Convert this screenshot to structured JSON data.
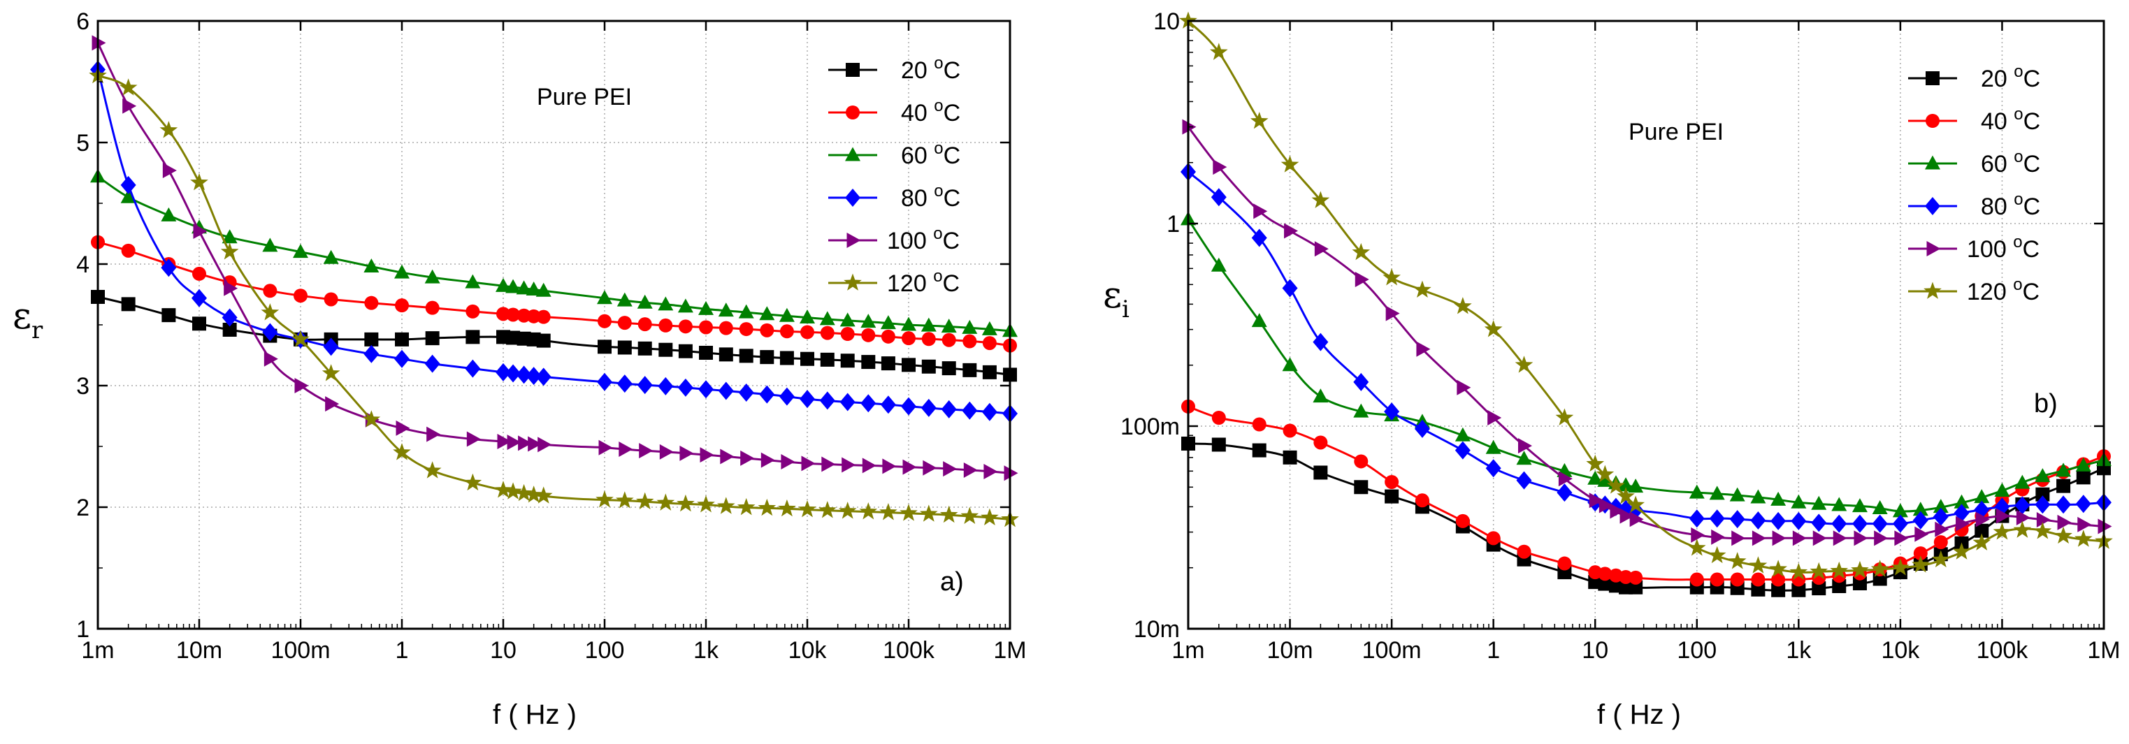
{
  "chart_data": [
    {
      "type": "line",
      "panel_label": "a)",
      "annotation": "Pure PEI",
      "xlabel": "f ( Hz )",
      "ylabel": "ε",
      "ylabel_sub": "r",
      "xscale": "log",
      "yscale": "linear",
      "xlim": [
        0.001,
        1000000
      ],
      "ylim": [
        1,
        6
      ],
      "xticks": [
        {
          "value": 0.001,
          "label": "1m"
        },
        {
          "value": 0.01,
          "label": "10m"
        },
        {
          "value": 0.1,
          "label": "100m"
        },
        {
          "value": 1,
          "label": "1"
        },
        {
          "value": 10,
          "label": "10"
        },
        {
          "value": 100,
          "label": "100"
        },
        {
          "value": 1000,
          "label": "1k"
        },
        {
          "value": 10000,
          "label": "10k"
        },
        {
          "value": 100000,
          "label": "100k"
        },
        {
          "value": 1000000,
          "label": "1M"
        }
      ],
      "yticks": [
        {
          "value": 1,
          "label": "1"
        },
        {
          "value": 2,
          "label": "2"
        },
        {
          "value": 3,
          "label": "3"
        },
        {
          "value": 4,
          "label": "4"
        },
        {
          "value": 5,
          "label": "5"
        },
        {
          "value": 6,
          "label": "6"
        }
      ],
      "grid": true,
      "legend_position": "top-right",
      "series": [
        {
          "name": "20 °C",
          "temp": "20",
          "color": "#000000",
          "marker": "square",
          "x": [
            0.001,
            0.002,
            0.005,
            0.01,
            0.02,
            0.05,
            0.1,
            0.2,
            0.5,
            1,
            2,
            5,
            10,
            20,
            50,
            100,
            200,
            500,
            1000,
            2000,
            5000,
            10000,
            20000,
            50000,
            100000,
            200000,
            500000,
            1000000
          ],
          "y": [
            3.73,
            3.67,
            3.58,
            3.51,
            3.46,
            3.41,
            3.38,
            3.38,
            3.38,
            3.38,
            3.39,
            3.4,
            3.4,
            3.38,
            3.34,
            3.32,
            3.31,
            3.29,
            3.27,
            3.25,
            3.23,
            3.22,
            3.21,
            3.19,
            3.17,
            3.15,
            3.12,
            3.09
          ]
        },
        {
          "name": "40 °C",
          "temp": "40",
          "color": "#ff0000",
          "marker": "circle",
          "x": [
            0.001,
            0.002,
            0.005,
            0.01,
            0.02,
            0.05,
            0.1,
            0.2,
            0.5,
            1,
            2,
            5,
            10,
            20,
            50,
            100,
            200,
            500,
            1000,
            2000,
            5000,
            10000,
            20000,
            50000,
            100000,
            200000,
            500000,
            1000000
          ],
          "y": [
            4.18,
            4.11,
            4.0,
            3.92,
            3.85,
            3.78,
            3.74,
            3.71,
            3.68,
            3.66,
            3.64,
            3.61,
            3.59,
            3.57,
            3.55,
            3.53,
            3.51,
            3.49,
            3.48,
            3.47,
            3.45,
            3.44,
            3.43,
            3.41,
            3.39,
            3.38,
            3.36,
            3.33
          ]
        },
        {
          "name": "60 °C",
          "temp": "60",
          "color": "#008000",
          "marker": "triangle",
          "x": [
            0.001,
            0.002,
            0.005,
            0.01,
            0.02,
            0.05,
            0.1,
            0.2,
            0.5,
            1,
            2,
            5,
            10,
            20,
            50,
            100,
            200,
            500,
            1000,
            2000,
            5000,
            10000,
            20000,
            50000,
            100000,
            200000,
            500000,
            1000000
          ],
          "y": [
            4.72,
            4.55,
            4.4,
            4.3,
            4.22,
            4.15,
            4.1,
            4.05,
            3.98,
            3.93,
            3.89,
            3.85,
            3.82,
            3.79,
            3.75,
            3.72,
            3.69,
            3.66,
            3.63,
            3.61,
            3.58,
            3.56,
            3.54,
            3.52,
            3.5,
            3.49,
            3.47,
            3.45
          ]
        },
        {
          "name": "80 °C",
          "temp": "80",
          "color": "#0000ff",
          "marker": "diamond",
          "x": [
            0.001,
            0.002,
            0.005,
            0.01,
            0.02,
            0.05,
            0.1,
            0.2,
            0.5,
            1,
            2,
            5,
            10,
            20,
            50,
            100,
            200,
            500,
            1000,
            2000,
            5000,
            10000,
            20000,
            50000,
            100000,
            200000,
            500000,
            1000000
          ],
          "y": [
            5.6,
            4.65,
            3.97,
            3.72,
            3.56,
            3.44,
            3.38,
            3.32,
            3.26,
            3.22,
            3.18,
            3.14,
            3.11,
            3.08,
            3.05,
            3.03,
            3.01,
            2.99,
            2.97,
            2.95,
            2.92,
            2.89,
            2.87,
            2.85,
            2.83,
            2.81,
            2.79,
            2.77
          ]
        },
        {
          "name": "100 °C",
          "temp": "100",
          "color": "#800080",
          "marker": "triangle-right",
          "x": [
            0.001,
            0.002,
            0.005,
            0.01,
            0.02,
            0.05,
            0.1,
            0.2,
            0.5,
            1,
            2,
            5,
            10,
            20,
            50,
            100,
            200,
            500,
            1000,
            2000,
            5000,
            10000,
            20000,
            50000,
            100000,
            200000,
            500000,
            1000000
          ],
          "y": [
            5.82,
            5.3,
            4.77,
            4.27,
            3.8,
            3.22,
            3.0,
            2.85,
            2.72,
            2.65,
            2.6,
            2.56,
            2.54,
            2.52,
            2.5,
            2.49,
            2.47,
            2.45,
            2.43,
            2.41,
            2.38,
            2.36,
            2.35,
            2.34,
            2.33,
            2.32,
            2.3,
            2.28
          ]
        },
        {
          "name": "120 °C",
          "temp": "120",
          "color": "#808000",
          "marker": "star",
          "x": [
            0.001,
            0.002,
            0.005,
            0.01,
            0.02,
            0.05,
            0.1,
            0.2,
            0.5,
            1,
            2,
            5,
            10,
            20,
            50,
            100,
            200,
            500,
            1000,
            2000,
            5000,
            10000,
            20000,
            50000,
            100000,
            200000,
            500000,
            1000000
          ],
          "y": [
            5.55,
            5.45,
            5.1,
            4.67,
            4.1,
            3.6,
            3.38,
            3.1,
            2.72,
            2.45,
            2.3,
            2.2,
            2.14,
            2.1,
            2.07,
            2.06,
            2.05,
            2.03,
            2.02,
            2.0,
            1.99,
            1.98,
            1.97,
            1.96,
            1.95,
            1.94,
            1.92,
            1.9
          ]
        }
      ]
    },
    {
      "type": "line",
      "panel_label": "b)",
      "annotation": "Pure PEI",
      "xlabel": "f ( Hz )",
      "ylabel": "ε",
      "ylabel_sub": "i",
      "xscale": "log",
      "yscale": "log",
      "xlim": [
        0.001,
        1000000
      ],
      "ylim": [
        0.01,
        10
      ],
      "xticks": [
        {
          "value": 0.001,
          "label": "1m"
        },
        {
          "value": 0.01,
          "label": "10m"
        },
        {
          "value": 0.1,
          "label": "100m"
        },
        {
          "value": 1,
          "label": "1"
        },
        {
          "value": 10,
          "label": "10"
        },
        {
          "value": 100,
          "label": "100"
        },
        {
          "value": 1000,
          "label": "1k"
        },
        {
          "value": 10000,
          "label": "10k"
        },
        {
          "value": 100000,
          "label": "100k"
        },
        {
          "value": 1000000,
          "label": "1M"
        }
      ],
      "yticks": [
        {
          "value": 0.01,
          "label": "10m"
        },
        {
          "value": 0.1,
          "label": "100m"
        },
        {
          "value": 1,
          "label": "1"
        },
        {
          "value": 10,
          "label": "10"
        }
      ],
      "grid": true,
      "legend_position": "top-right",
      "series": [
        {
          "name": "20 °C",
          "temp": "20",
          "color": "#000000",
          "marker": "square",
          "x": [
            0.001,
            0.002,
            0.005,
            0.01,
            0.02,
            0.05,
            0.1,
            0.2,
            0.5,
            1,
            2,
            5,
            10,
            20,
            50,
            100,
            200,
            500,
            1000,
            2000,
            5000,
            10000,
            20000,
            50000,
            100000,
            200000,
            500000,
            1000000
          ],
          "y": [
            0.082,
            0.081,
            0.076,
            0.07,
            0.059,
            0.05,
            0.045,
            0.04,
            0.032,
            0.026,
            0.022,
            0.019,
            0.017,
            0.016,
            0.016,
            0.016,
            0.016,
            0.0155,
            0.0155,
            0.016,
            0.017,
            0.019,
            0.022,
            0.028,
            0.036,
            0.044,
            0.053,
            0.062
          ]
        },
        {
          "name": "40 °C",
          "temp": "40",
          "color": "#ff0000",
          "marker": "circle",
          "x": [
            0.001,
            0.002,
            0.005,
            0.01,
            0.02,
            0.05,
            0.1,
            0.2,
            0.5,
            1,
            2,
            5,
            10,
            20,
            50,
            100,
            200,
            500,
            1000,
            2000,
            5000,
            10000,
            20000,
            50000,
            100000,
            200000,
            500000,
            1000000
          ],
          "y": [
            0.125,
            0.11,
            0.102,
            0.095,
            0.083,
            0.067,
            0.053,
            0.043,
            0.034,
            0.028,
            0.024,
            0.021,
            0.019,
            0.018,
            0.0175,
            0.0175,
            0.0175,
            0.0175,
            0.0175,
            0.018,
            0.019,
            0.021,
            0.025,
            0.033,
            0.043,
            0.052,
            0.062,
            0.071
          ]
        },
        {
          "name": "60 °C",
          "temp": "60",
          "color": "#008000",
          "marker": "triangle",
          "x": [
            0.001,
            0.002,
            0.005,
            0.01,
            0.02,
            0.05,
            0.1,
            0.2,
            0.5,
            1,
            2,
            5,
            10,
            20,
            50,
            100,
            200,
            500,
            1000,
            2000,
            5000,
            10000,
            20000,
            50000,
            100000,
            200000,
            500000,
            1000000
          ],
          "y": [
            1.05,
            0.62,
            0.33,
            0.2,
            0.14,
            0.118,
            0.113,
            0.105,
            0.09,
            0.078,
            0.069,
            0.06,
            0.055,
            0.051,
            0.048,
            0.047,
            0.046,
            0.044,
            0.042,
            0.041,
            0.04,
            0.038,
            0.039,
            0.043,
            0.048,
            0.055,
            0.062,
            0.068
          ]
        },
        {
          "name": "80 °C",
          "temp": "80",
          "color": "#0000ff",
          "marker": "diamond",
          "x": [
            0.001,
            0.002,
            0.005,
            0.01,
            0.02,
            0.05,
            0.1,
            0.2,
            0.5,
            1,
            2,
            5,
            10,
            20,
            50,
            100,
            200,
            500,
            1000,
            2000,
            5000,
            10000,
            20000,
            50000,
            100000,
            200000,
            500000,
            1000000
          ],
          "y": [
            1.8,
            1.35,
            0.85,
            0.48,
            0.26,
            0.165,
            0.118,
            0.097,
            0.076,
            0.062,
            0.054,
            0.047,
            0.042,
            0.039,
            0.037,
            0.035,
            0.035,
            0.034,
            0.034,
            0.033,
            0.033,
            0.033,
            0.035,
            0.038,
            0.04,
            0.041,
            0.041,
            0.042
          ]
        },
        {
          "name": "100 °C",
          "temp": "100",
          "color": "#800080",
          "marker": "triangle-right",
          "x": [
            0.001,
            0.002,
            0.005,
            0.01,
            0.02,
            0.05,
            0.1,
            0.2,
            0.5,
            1,
            2,
            5,
            10,
            20,
            50,
            100,
            200,
            500,
            1000,
            2000,
            5000,
            10000,
            20000,
            50000,
            100000,
            200000,
            500000,
            1000000
          ],
          "y": [
            3.0,
            1.9,
            1.15,
            0.92,
            0.75,
            0.53,
            0.36,
            0.24,
            0.155,
            0.11,
            0.08,
            0.055,
            0.043,
            0.036,
            0.031,
            0.029,
            0.028,
            0.028,
            0.028,
            0.028,
            0.028,
            0.028,
            0.03,
            0.034,
            0.036,
            0.035,
            0.033,
            0.032
          ]
        },
        {
          "name": "120 °C",
          "temp": "120",
          "color": "#808000",
          "marker": "star",
          "x": [
            0.001,
            0.002,
            0.005,
            0.01,
            0.02,
            0.05,
            0.1,
            0.2,
            0.5,
            1,
            2,
            5,
            10,
            20,
            50,
            100,
            200,
            500,
            1000,
            2000,
            5000,
            10000,
            20000,
            50000,
            100000,
            200000,
            500000,
            1000000
          ],
          "y": [
            10.0,
            7.0,
            3.2,
            1.95,
            1.3,
            0.72,
            0.54,
            0.47,
            0.39,
            0.3,
            0.2,
            0.11,
            0.065,
            0.045,
            0.03,
            0.025,
            0.022,
            0.02,
            0.019,
            0.0192,
            0.0195,
            0.02,
            0.021,
            0.025,
            0.03,
            0.031,
            0.028,
            0.027
          ]
        }
      ]
    }
  ]
}
